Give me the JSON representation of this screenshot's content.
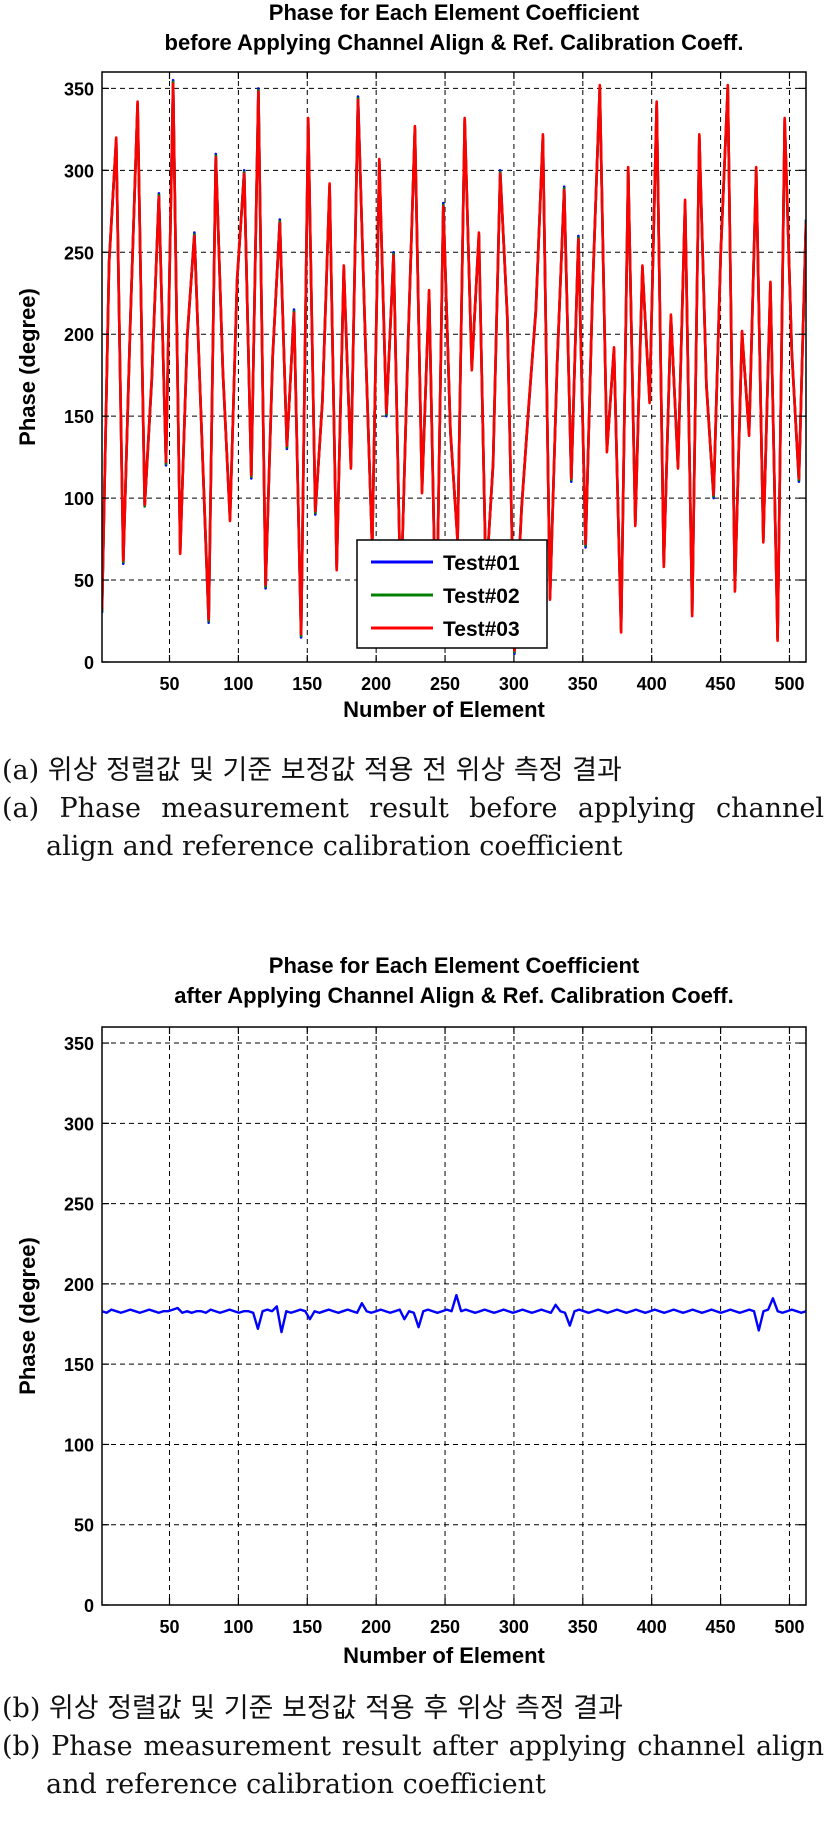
{
  "chart_data": [
    {
      "type": "line",
      "title": "Phase for Each Element Coefficient",
      "subtitle": "before Applying Channel Align & Ref. Calibration Coeff.",
      "xlabel": "Number of Element",
      "ylabel": "Phase (degree)",
      "xlim": [
        1,
        512
      ],
      "ylim": [
        0,
        360
      ],
      "xticks": [
        50,
        100,
        150,
        200,
        250,
        300,
        350,
        400,
        450,
        500
      ],
      "yticks": [
        0,
        50,
        100,
        150,
        200,
        250,
        300,
        350
      ],
      "grid": true,
      "legend": "bottom-center",
      "x": "1 to 512",
      "series": [
        {
          "name": "Test#01",
          "color": "#0000ff",
          "values": [
            30,
            245,
            318,
            60,
            210,
            340,
            95,
            172,
            286,
            120,
            355,
            68,
            198,
            262,
            140,
            24,
            310,
            176,
            88,
            232,
            300,
            112,
            350,
            45,
            186,
            270,
            130,
            215,
            15,
            330,
            90,
            160,
            290,
            58,
            240,
            120,
            345,
            200,
            70,
            305,
            150,
            250,
            35,
            190,
            325,
            105,
            225,
            10,
            280,
            140,
            75,
            330,
            180,
            260,
            50,
            120,
            300,
            210,
            5,
            95,
            155,
            215,
            320,
            40,
            180,
            290,
            110,
            260,
            70,
            230,
            350,
            130,
            190,
            20,
            300,
            85,
            240,
            160,
            340,
            60,
            210,
            120,
            280,
            30,
            320,
            170,
            100,
            250,
            350,
            45,
            200,
            140,
            300,
            75,
            230,
            15,
            330,
            190,
            110,
            270
          ]
        },
        {
          "name": "Test#02",
          "color": "#008000",
          "values": [
            31,
            244,
            319,
            61,
            209,
            341,
            95,
            173,
            285,
            121,
            354,
            67,
            199,
            261,
            141,
            25,
            309,
            177,
            87,
            233,
            299,
            113,
            349,
            46,
            187,
            269,
            131,
            214,
            16,
            331,
            91,
            159,
            291,
            57,
            241,
            119,
            344,
            201,
            69,
            306,
            151,
            249,
            36,
            189,
            326,
            104,
            226,
            11,
            279,
            141,
            74,
            331,
            179,
            261,
            49,
            121,
            299,
            211,
            6,
            94,
            156,
            214,
            321,
            39,
            181,
            289,
            111,
            259,
            71,
            229,
            351,
            129,
            191,
            19,
            301,
            84,
            241,
            159,
            341,
            59,
            211,
            119,
            281,
            29,
            321,
            169,
            101,
            249,
            351,
            44,
            201,
            139,
            301,
            74,
            231,
            14,
            331,
            189,
            111,
            269
          ]
        },
        {
          "name": "Test#03",
          "color": "#ff0000",
          "values": [
            32,
            243,
            320,
            62,
            208,
            342,
            96,
            174,
            284,
            122,
            353,
            66,
            200,
            260,
            142,
            26,
            308,
            178,
            86,
            234,
            298,
            114,
            348,
            47,
            188,
            268,
            132,
            213,
            17,
            332,
            92,
            158,
            292,
            56,
            242,
            118,
            343,
            202,
            68,
            307,
            152,
            248,
            37,
            188,
            327,
            103,
            227,
            12,
            278,
            142,
            73,
            332,
            178,
            262,
            48,
            122,
            298,
            212,
            7,
            93,
            157,
            213,
            322,
            38,
            182,
            288,
            112,
            258,
            72,
            228,
            352,
            128,
            192,
            18,
            302,
            83,
            242,
            158,
            342,
            58,
            212,
            118,
            282,
            28,
            322,
            168,
            102,
            248,
            352,
            43,
            202,
            138,
            302,
            73,
            232,
            13,
            332,
            188,
            112,
            268
          ]
        }
      ]
    },
    {
      "type": "line",
      "title": "Phase for Each Element Coefficient",
      "subtitle": "after Applying Channel Align & Ref. Calibration Coeff.",
      "xlabel": "Number of Element",
      "ylabel": "Phase (degree)",
      "xlim": [
        1,
        512
      ],
      "ylim": [
        0,
        360
      ],
      "xticks": [
        50,
        100,
        150,
        200,
        250,
        300,
        350,
        400,
        450,
        500
      ],
      "yticks": [
        0,
        50,
        100,
        150,
        200,
        250,
        300,
        350
      ],
      "grid": true,
      "x": "1 to 512",
      "series": [
        {
          "color": "#0000ff",
          "values": [
            183,
            182,
            184,
            183,
            182,
            183,
            184,
            183,
            182,
            183,
            184,
            183,
            182,
            183,
            183,
            184,
            185,
            182,
            183,
            182,
            183,
            183,
            182,
            184,
            183,
            182,
            183,
            184,
            183,
            182,
            183,
            183,
            182,
            172,
            183,
            184,
            183,
            186,
            170,
            183,
            182,
            183,
            184,
            183,
            178,
            183,
            182,
            183,
            184,
            183,
            182,
            183,
            184,
            183,
            182,
            188,
            183,
            182,
            183,
            184,
            183,
            182,
            183,
            184,
            178,
            183,
            182,
            173,
            183,
            184,
            183,
            182,
            183,
            184,
            183,
            193,
            183,
            184,
            183,
            182,
            183,
            184,
            183,
            182,
            183,
            184,
            183,
            182,
            183,
            184,
            183,
            182,
            183,
            184,
            183,
            182,
            187,
            183,
            182,
            174,
            183,
            184,
            183,
            182,
            183,
            184,
            183,
            182,
            183,
            184,
            183,
            182,
            183,
            184,
            183,
            182,
            183,
            184,
            183,
            182,
            183,
            184,
            183,
            182,
            183,
            184,
            183,
            182,
            183,
            184,
            183,
            182,
            183,
            184,
            183,
            182,
            183,
            184,
            183,
            171,
            183,
            184,
            191,
            183,
            182,
            183,
            184,
            183,
            182,
            183
          ]
        }
      ]
    }
  ],
  "captions": {
    "a_ko": "(a) 위상 정렬값 및 기준 보정값 적용 전 위상 측정 결과",
    "a_en": "(a) Phase measurement result before applying channel align and reference calibration coefficient",
    "b_ko": "(b) 위상 정렬값 및 기준 보정값 적용 후 위상 측정 결과",
    "b_en": "(b) Phase measurement result after applying channel align and reference calibration coefficient"
  }
}
